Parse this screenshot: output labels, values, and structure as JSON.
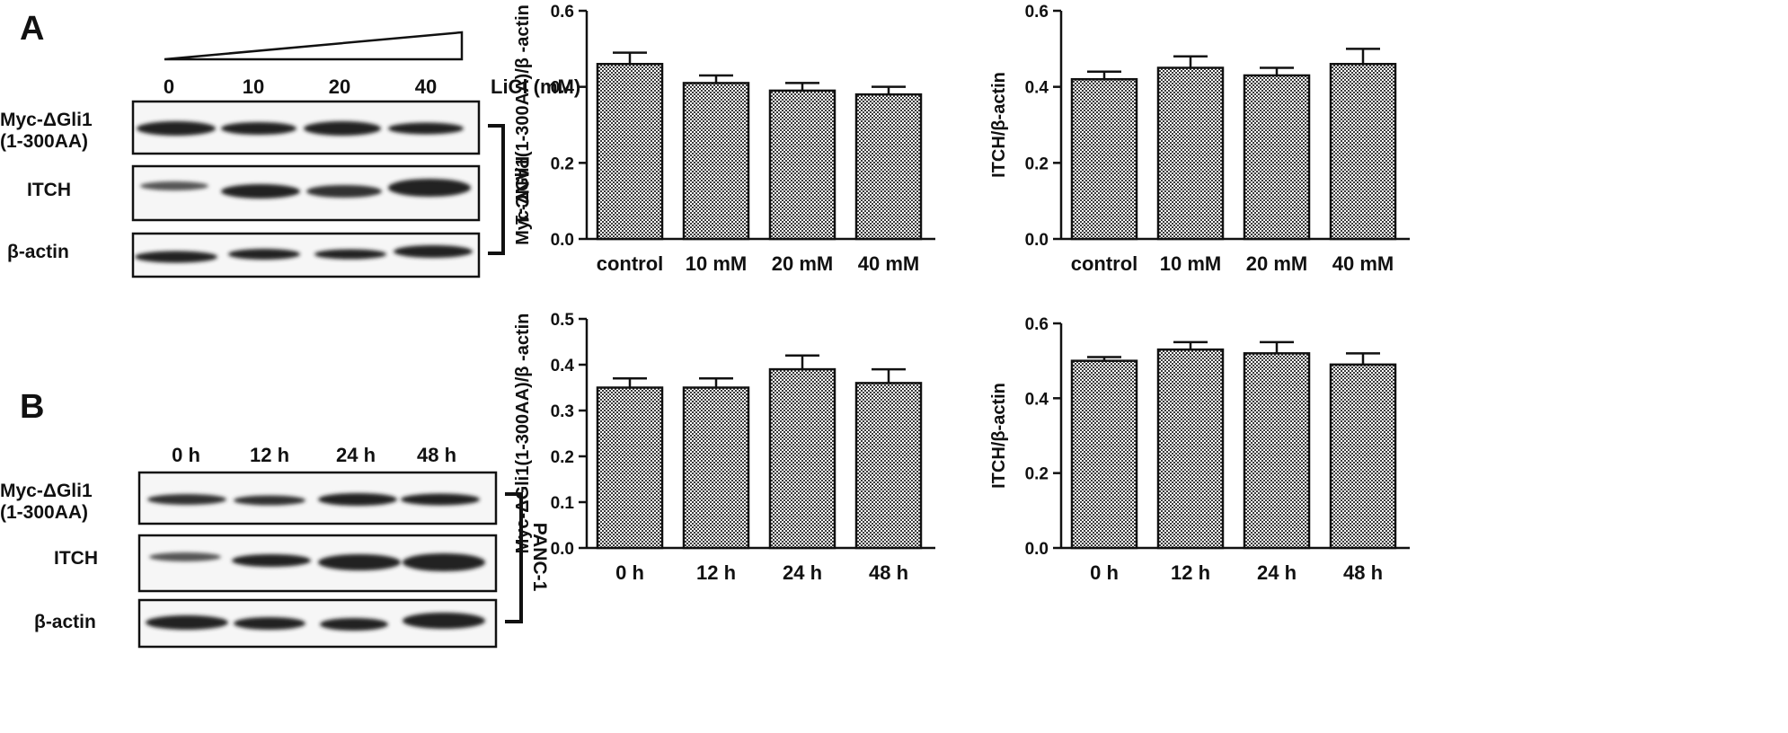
{
  "colors": {
    "ink": "#111111",
    "band": "#202020",
    "background": "#ffffff"
  },
  "panel_a": {
    "letter": "A",
    "blot": {
      "lanes": [
        "0",
        "10",
        "20",
        "40"
      ],
      "treatment_label": "LiCl (mM)",
      "row_labels": [
        [
          "Myc-ΔGli1",
          "(1-300AA)"
        ],
        [
          "ITCH"
        ],
        [
          "β-actin"
        ]
      ],
      "cell_line": "PANC-1"
    }
  },
  "panel_b": {
    "letter": "B",
    "blot": {
      "lanes": [
        "0 h",
        "12 h",
        "24 h",
        "48 h"
      ],
      "row_labels": [
        [
          "Myc-ΔGli1",
          "(1-300AA)"
        ],
        [
          "ITCH"
        ],
        [
          "β-actin"
        ]
      ],
      "cell_line": "PANC-1"
    }
  },
  "chart_data": [
    {
      "type": "bar",
      "panel": "A",
      "categories": [
        "control",
        "10 mM",
        "20 mM",
        "40 mM"
      ],
      "values": [
        0.46,
        0.41,
        0.39,
        0.38
      ],
      "errors": [
        0.03,
        0.02,
        0.02,
        0.02
      ],
      "ylabel": "Myc-ΔGli1(1-300AA)/β -actin",
      "ylim": [
        0,
        0.6
      ],
      "yticks": [
        "0.0",
        "0.2",
        "0.4",
        "0.6"
      ]
    },
    {
      "type": "bar",
      "panel": "A",
      "categories": [
        "control",
        "10 mM",
        "20 mM",
        "40 mM"
      ],
      "values": [
        0.42,
        0.45,
        0.43,
        0.46
      ],
      "errors": [
        0.02,
        0.03,
        0.02,
        0.04
      ],
      "ylabel": "ITCH/β-actin",
      "ylim": [
        0,
        0.6
      ],
      "yticks": [
        "0.0",
        "0.2",
        "0.4",
        "0.6"
      ]
    },
    {
      "type": "bar",
      "panel": "B",
      "categories": [
        "0 h",
        "12 h",
        "24 h",
        "48 h"
      ],
      "values": [
        0.35,
        0.35,
        0.39,
        0.36
      ],
      "errors": [
        0.02,
        0.02,
        0.03,
        0.03
      ],
      "ylabel": "Myc-ΔGli1(1-300AA)/β -actin",
      "ylim": [
        0,
        0.5
      ],
      "yticks": [
        "0.0",
        "0.1",
        "0.2",
        "0.3",
        "0.4",
        "0.5"
      ]
    },
    {
      "type": "bar",
      "panel": "B",
      "categories": [
        "0 h",
        "12 h",
        "24 h",
        "48 h"
      ],
      "values": [
        0.5,
        0.53,
        0.52,
        0.49
      ],
      "errors": [
        0.01,
        0.02,
        0.03,
        0.03
      ],
      "ylabel": "ITCH/β-actin",
      "ylim": [
        0,
        0.6
      ],
      "yticks": [
        "0.0",
        "0.2",
        "0.4",
        "0.6"
      ]
    }
  ]
}
